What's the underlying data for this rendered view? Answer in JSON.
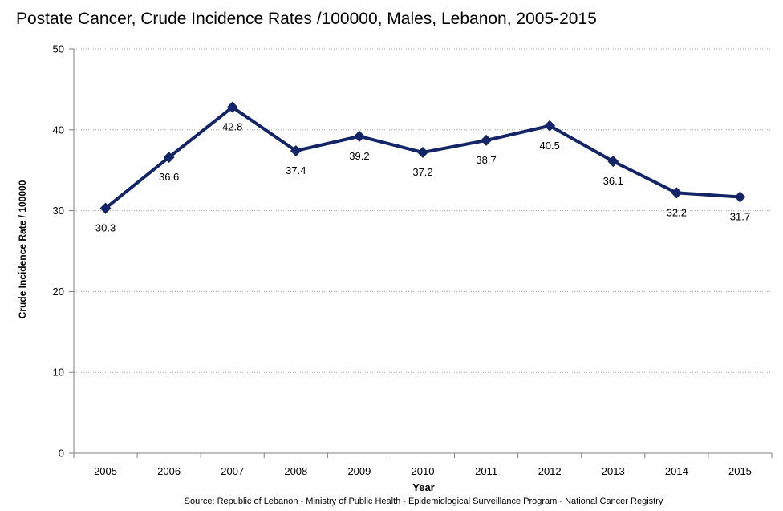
{
  "chart_data": {
    "type": "line",
    "title": "Postate Cancer, Crude Incidence Rates /100000,   Males, Lebanon, 2005-2015",
    "xlabel": "Year",
    "ylabel": "Crude Incidence Rate / 100000",
    "categories": [
      "2005",
      "2006",
      "2007",
      "2008",
      "2009",
      "2010",
      "2011",
      "2012",
      "2013",
      "2014",
      "2015"
    ],
    "series": [
      {
        "name": "Crude Incidence Rate",
        "values": [
          30.3,
          36.6,
          42.8,
          37.4,
          39.2,
          37.2,
          38.7,
          40.5,
          36.1,
          32.2,
          31.7
        ]
      }
    ],
    "data_labels": [
      "30.3",
      "36.6",
      "42.8",
      "37.4",
      "39.2",
      "37.2",
      "38.7",
      "40.5",
      "36.1",
      "32.2",
      "31.7"
    ],
    "label_position": [
      "below",
      "below",
      "below",
      "below",
      "below",
      "below",
      "below",
      "below",
      "below",
      "below",
      "below"
    ],
    "ylim": [
      0,
      50
    ],
    "yticks": [
      0,
      10,
      20,
      30,
      40,
      50
    ],
    "ytick_labels": [
      "0",
      "10",
      "20",
      "30",
      "40",
      "50"
    ],
    "grid": true,
    "line_color": "#132567",
    "grid_color": "#a6a6a6",
    "source": "Source:  Republic of Lebanon - Ministry of Public Health - Epidemiological Surveillance Program - National Cancer Registry"
  }
}
